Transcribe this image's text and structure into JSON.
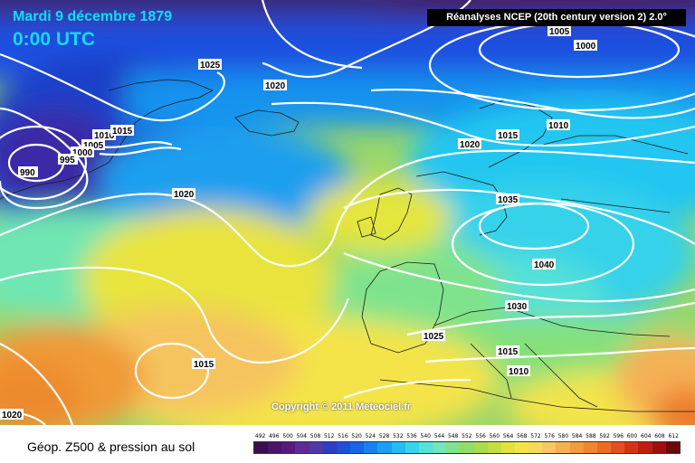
{
  "header": {
    "date": "Mardi 9 décembre 1879",
    "time": "0:00 UTC",
    "source": "Réanalyses NCEP (20th century version 2) 2.0°"
  },
  "copyright": "Copyright © 2011 Meteociel.fr",
  "legend": {
    "title": "Géop. Z500 & pression au sol",
    "ticks": [
      "492",
      "496",
      "500",
      "504",
      "508",
      "512",
      "516",
      "520",
      "524",
      "528",
      "532",
      "536",
      "540",
      "544",
      "548",
      "552",
      "556",
      "560",
      "564",
      "568",
      "572",
      "576",
      "580",
      "584",
      "588",
      "592",
      "596",
      "600",
      "604",
      "608",
      "612"
    ],
    "colors": [
      "#3b0f4f",
      "#4a1468",
      "#571a80",
      "#5f2a96",
      "#4b3aa8",
      "#2d3fc0",
      "#1d4fd8",
      "#1566e8",
      "#1682ee",
      "#1aa0f2",
      "#22bdf3",
      "#37d4ec",
      "#55e2da",
      "#6fe7b7",
      "#7fe38d",
      "#90de63",
      "#a9dc4a",
      "#c5de3f",
      "#e2e23c",
      "#f4e448",
      "#f7d959",
      "#f6c764",
      "#f5b055",
      "#f49a3f",
      "#f28530",
      "#ee6b24",
      "#e45019",
      "#d43414",
      "#c01d12",
      "#9c1010",
      "#6b0808"
    ]
  },
  "isobars": {
    "labels": [
      "1025",
      "1020",
      "1005",
      "1000",
      "1016",
      "1015",
      "1005",
      "1000",
      "995",
      "990",
      "1010",
      "1020",
      "1015",
      "1035",
      "1040",
      "1030",
      "1025",
      "1015",
      "1010",
      "1020",
      "1015",
      "1020"
    ]
  },
  "colors": {
    "title": "#16d7ff",
    "isobar": "#ffffff",
    "coast": "#1a1a1a"
  }
}
